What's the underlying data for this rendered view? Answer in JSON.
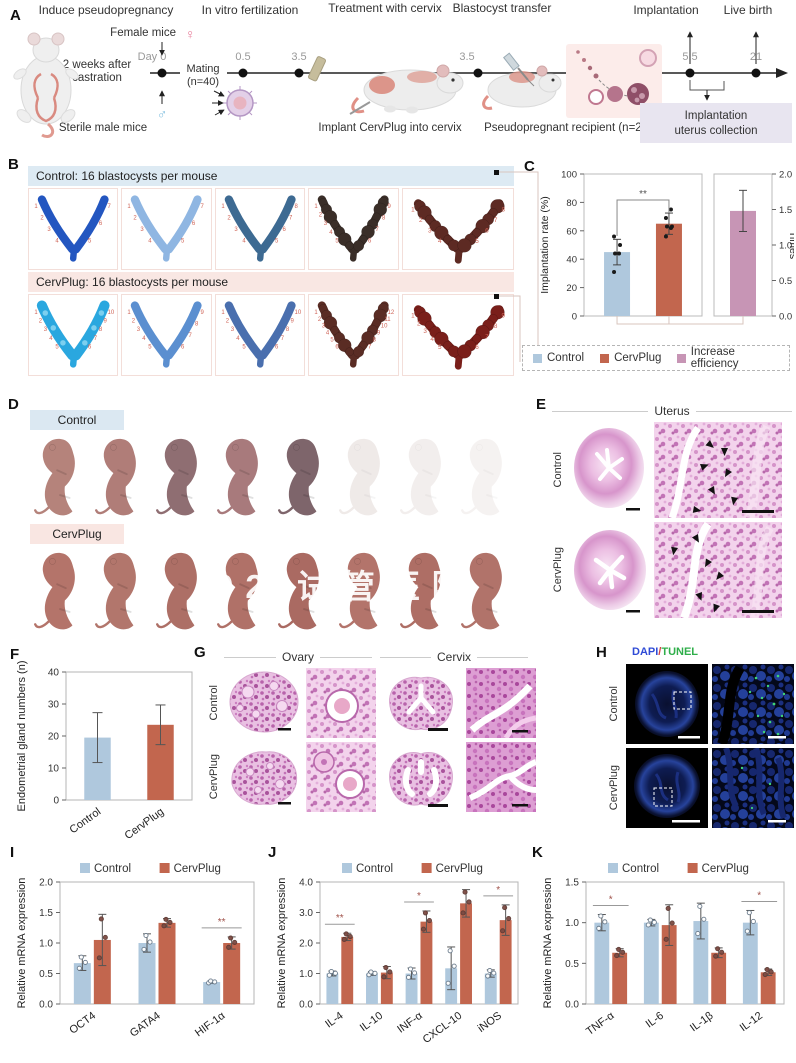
{
  "panel_labels": {
    "a": "A",
    "b": "B",
    "c": "C",
    "d": "D",
    "e": "E",
    "f": "F",
    "g": "G",
    "h": "H",
    "i": "I",
    "j": "J",
    "k": "K"
  },
  "panelA": {
    "titles": [
      "Induce pseudopregnancy",
      "In vitro fertilization",
      "Treatment with cervix",
      "Blastocyst transfer",
      "Implantation",
      "Live birth"
    ],
    "female_mice": "Female mice",
    "female_symbol": "♀",
    "male_symbol": "♂",
    "day0": "Day 0",
    "t05": "0.5",
    "t35a": "3.5",
    "t35b": "3.5",
    "t55": "5.5",
    "t21": "21",
    "castration1": "2 weeks after",
    "castration2": "castration",
    "mating1": "Mating",
    "mating2": "(n=40)",
    "sterile": "Sterile male mice",
    "implant": "Implant CervPlug into cervix",
    "recipient": "Pseudopregnant recipient (n=20)",
    "collection1": "Implantation",
    "collection2": "uterus collection"
  },
  "panelB": {
    "control": {
      "header": "Control: 16 blastocysts per mouse",
      "band_color": "#ddeaf3",
      "items": [
        {
          "color": "#2356c0",
          "style": "smooth",
          "sites": 7
        },
        {
          "color": "#8fb6e2",
          "style": "smooth",
          "sites": 7
        },
        {
          "color": "#3d6a92",
          "style": "smooth",
          "sites": 8
        },
        {
          "color": "#3a2e28",
          "style": "bumpy",
          "sites": 9
        },
        {
          "color": "#5d2a23",
          "style": "widebumpy",
          "sites": 8
        }
      ]
    },
    "cervplug": {
      "header": "CervPlug: 16 blastocysts per mouse",
      "band_color": "#f9e7e3",
      "items": [
        {
          "color": "#2aa7df",
          "style": "zigzag",
          "sites": 10
        },
        {
          "color": "#5b8fd0",
          "style": "smooth",
          "sites": 9
        },
        {
          "color": "#4a6fae",
          "style": "smooth",
          "sites": 10
        },
        {
          "color": "#5a2c24",
          "style": "bumpy",
          "sites": 12
        },
        {
          "color": "#7a1f1a",
          "style": "widebumpy",
          "sites": 9
        }
      ]
    }
  },
  "panelD": {
    "rows": [
      {
        "label": "Control",
        "band_color": "#dbe8f2",
        "pups": [
          {
            "color": "#b5837b",
            "opacity": 1
          },
          {
            "color": "#b07d78",
            "opacity": 1
          },
          {
            "color": "#8f6e72",
            "opacity": 1
          },
          {
            "color": "#a87a7c",
            "opacity": 1
          },
          {
            "color": "#7e656b",
            "opacity": 1
          },
          {
            "color": "#d3c4c0",
            "opacity": 0.35
          },
          {
            "color": "#d6c8c4",
            "opacity": 0.3
          },
          {
            "color": "#d9ccc8",
            "opacity": 0.25
          }
        ]
      },
      {
        "label": "CervPlug",
        "band_color": "#f9e6e2",
        "pups": [
          {
            "color": "#b4746a",
            "opacity": 1
          },
          {
            "color": "#b2766c",
            "opacity": 1
          },
          {
            "color": "#ad6f66",
            "opacity": 1
          },
          {
            "color": "#b07168",
            "opacity": 1
          },
          {
            "color": "#aa6a62",
            "opacity": 1
          },
          {
            "color": "#b3746b",
            "opacity": 1
          },
          {
            "color": "#ae6e65",
            "opacity": 1
          },
          {
            "color": "#b1736a",
            "opacity": 1
          }
        ]
      }
    ]
  },
  "watermark": {
    "text": "02 试管医院"
  },
  "panelE": {
    "title": "Uterus",
    "rows": [
      "Control",
      "CervPlug"
    ]
  },
  "panelG": {
    "ovary": "Ovary",
    "cervix": "Cervix",
    "rows": [
      "Control",
      "CervPlug"
    ]
  },
  "panelH": {
    "stain": [
      {
        "text": "DAPI",
        "color": "#2f4bd6"
      },
      {
        "text": "/",
        "color": "#d04040"
      },
      {
        "text": "TUNEL",
        "color": "#2fae4a"
      }
    ],
    "rows": [
      "Control",
      "CervPlug"
    ]
  },
  "chart_data": [
    {
      "id": "implantation_rate",
      "type": "bar",
      "panel": "C",
      "left_axis": {
        "label": "Implantation rate (%)",
        "ylim": [
          0,
          100
        ],
        "ticks": [
          0,
          20,
          40,
          60,
          80,
          100
        ]
      },
      "right_axis": {
        "label": "Times",
        "ylim": [
          0,
          2
        ],
        "ticks": [
          "0.0",
          "0.5",
          "1.0",
          "1.5",
          "2.0"
        ]
      },
      "bars": [
        {
          "name": "Control",
          "axis": "left",
          "value": 45,
          "err": 9,
          "points": [
            31,
            44,
            44,
            50,
            56
          ],
          "color": "#afc8dd"
        },
        {
          "name": "CervPlug",
          "axis": "left",
          "value": 65,
          "err": 7.5,
          "points": [
            56,
            62,
            63,
            63,
            69,
            75
          ],
          "color": "#c2664e"
        },
        {
          "name": "Increase efficiency",
          "axis": "right",
          "value": 1.48,
          "err": 0.29,
          "points": [],
          "color": "#c795b5"
        }
      ],
      "significance": [
        {
          "a": 0,
          "b": 1,
          "label": "**"
        }
      ],
      "legend": [
        "Control",
        "CervPlug",
        "Increase efficiency"
      ],
      "legend_position": "bottom"
    },
    {
      "id": "gland_numbers",
      "type": "bar",
      "panel": "F",
      "ylabel": "Endometrial gland numbers (n)",
      "ylim": [
        0,
        40
      ],
      "ticks": [
        0,
        10,
        20,
        30,
        40
      ],
      "categories": [
        "Control",
        "CervPlug"
      ],
      "values": [
        19.5,
        23.5
      ],
      "errors": [
        7.8,
        6.2
      ],
      "colors": [
        "#afc8dd",
        "#c2664e"
      ],
      "grid": false
    },
    {
      "id": "mrna_implantation_markers",
      "type": "bar",
      "panel": "I",
      "ylabel": "Relative mRNA expression",
      "ylim": [
        0,
        2
      ],
      "ticks": [
        "0.0",
        "0.5",
        "1.0",
        "1.5",
        "2.0"
      ],
      "categories": [
        "OCT4",
        "GATA4",
        "HIF-1α"
      ],
      "series": [
        {
          "name": "Control",
          "color": "#afc8dd",
          "values": [
            0.67,
            1.0,
            0.36
          ],
          "errors": [
            0.12,
            0.15,
            0.02
          ]
        },
        {
          "name": "CervPlug",
          "color": "#c2664e",
          "values": [
            1.05,
            1.33,
            1.0
          ],
          "errors": [
            0.42,
            0.07,
            0.1
          ]
        }
      ],
      "sig": [
        "",
        "",
        "**"
      ],
      "legend_position": "top"
    },
    {
      "id": "mrna_m2_markers",
      "type": "bar",
      "panel": "J",
      "ylabel": "Relative mRNA expression",
      "ylim": [
        0,
        4
      ],
      "ticks": [
        "0.0",
        "1.0",
        "2.0",
        "3.0",
        "4.0"
      ],
      "categories": [
        "IL-4",
        "IL-10",
        "INF-α",
        "CXCL-10",
        "iNOS"
      ],
      "series": [
        {
          "name": "Control",
          "color": "#afc8dd",
          "values": [
            1.0,
            1.0,
            1.0,
            1.17,
            1.0
          ],
          "errors": [
            0.08,
            0.06,
            0.18,
            0.7,
            0.12
          ]
        },
        {
          "name": "CervPlug",
          "color": "#c2664e",
          "values": [
            2.2,
            1.03,
            2.7,
            3.3,
            2.75
          ],
          "errors": [
            0.12,
            0.2,
            0.35,
            0.45,
            0.5
          ]
        }
      ],
      "sig": [
        "**",
        "",
        "*",
        "",
        "*"
      ],
      "legend_position": "top"
    },
    {
      "id": "mrna_inflammatory_markers",
      "type": "bar",
      "panel": "K",
      "ylabel": "Relative mRNA expression",
      "ylim": [
        0,
        1.5
      ],
      "ticks": [
        "0.0",
        "0.5",
        "1.0",
        "1.5"
      ],
      "categories": [
        "TNF-α",
        "IL-6",
        "IL-1β",
        "IL-12"
      ],
      "series": [
        {
          "name": "Control",
          "color": "#afc8dd",
          "values": [
            1.0,
            1.0,
            1.02,
            1.0
          ],
          "errors": [
            0.1,
            0.04,
            0.22,
            0.15
          ]
        },
        {
          "name": "CervPlug",
          "color": "#c2664e",
          "values": [
            0.63,
            0.97,
            0.63,
            0.39
          ],
          "errors": [
            0.05,
            0.25,
            0.06,
            0.04
          ]
        }
      ],
      "sig": [
        "*",
        "",
        "",
        "*"
      ],
      "legend_position": "top"
    }
  ]
}
